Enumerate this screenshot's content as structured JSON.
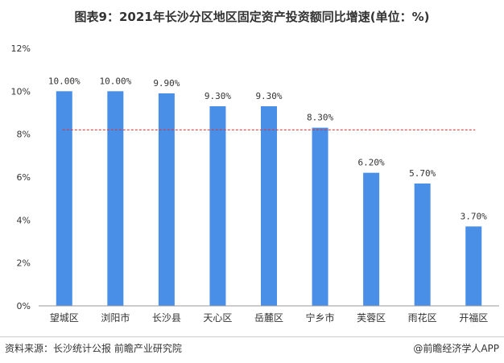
{
  "title": "图表9：2021年长沙分区地区固定资产投资额同比增速(单位：%)",
  "chart_data": {
    "type": "bar",
    "categories": [
      "望城区",
      "浏阳市",
      "长沙县",
      "天心区",
      "岳麓区",
      "宁乡市",
      "芙蓉区",
      "雨花区",
      "开福区"
    ],
    "values": [
      10.0,
      10.0,
      9.9,
      9.3,
      9.3,
      8.3,
      6.2,
      5.7,
      3.7
    ],
    "data_labels": [
      "10.00%",
      "10.00%",
      "9.90%",
      "9.30%",
      "9.30%",
      "8.30%",
      "6.20%",
      "5.70%",
      "3.70%"
    ],
    "yticks": [
      "0%",
      "2%",
      "4%",
      "6%",
      "8%",
      "10%",
      "12%"
    ],
    "ylim": [
      0,
      12
    ],
    "reference_line": 8.2,
    "bar_color": "#4a8fe7",
    "reference_color": "#e03030",
    "grid": false
  },
  "footer": {
    "source": "资料来源：长沙统计公报 前瞻产业研究院",
    "brand": "@前瞻经济学人APP"
  }
}
